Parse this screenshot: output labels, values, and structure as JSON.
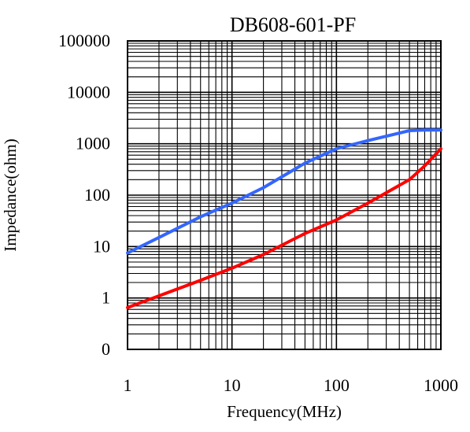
{
  "chart_data": {
    "type": "line",
    "title": "DB608-601-PF",
    "xlabel": "Frequency(MHz)",
    "ylabel": "Impedance(ohm)",
    "x_scale": "log",
    "y_scale": "log",
    "xlim": [
      1,
      1000
    ],
    "ylim": [
      0.1,
      100000
    ],
    "x_ticks": [
      1,
      10,
      100,
      1000
    ],
    "x_tick_labels": [
      "1",
      "10",
      "100",
      "1000"
    ],
    "y_ticks": [
      0.1,
      1,
      10,
      100,
      1000,
      10000,
      100000
    ],
    "y_tick_labels": [
      "0",
      "1",
      "10",
      "100",
      "1000",
      "10000",
      "100000"
    ],
    "grid": true,
    "series": [
      {
        "color": "#3366ff",
        "x": [
          1,
          2,
          5,
          10,
          20,
          50,
          100,
          200,
          500,
          700,
          1000
        ],
        "y": [
          7.5,
          15,
          38,
          70,
          140,
          420,
          800,
          1150,
          1800,
          1850,
          1850
        ]
      },
      {
        "color": "#ff0000",
        "x": [
          1,
          2,
          5,
          10,
          20,
          50,
          100,
          200,
          500,
          700,
          1000
        ],
        "y": [
          0.65,
          1.1,
          2.2,
          3.8,
          7,
          18,
          33,
          70,
          200,
          370,
          800
        ]
      }
    ]
  }
}
